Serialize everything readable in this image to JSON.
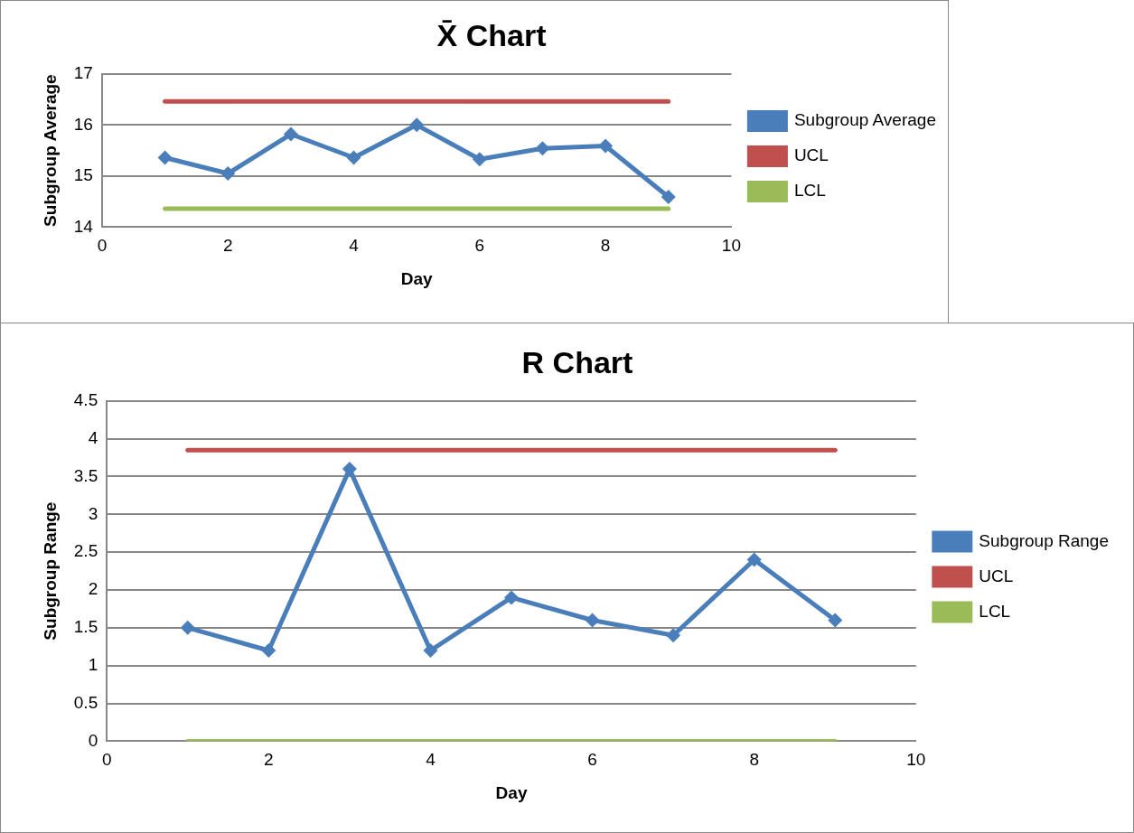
{
  "chart_data": [
    {
      "type": "line",
      "title": "X̄ Chart",
      "xlabel": "Day",
      "ylabel": "Subgroup Average",
      "xlim": [
        0,
        10
      ],
      "xticks": [
        0,
        2,
        4,
        6,
        8,
        10
      ],
      "ylim": [
        14,
        17
      ],
      "yticks": [
        14,
        15,
        16,
        17
      ],
      "grid": "y",
      "legend": "right",
      "line_style": "solid",
      "series": [
        {
          "name": "Subgroup Average",
          "color": "#4a7ebb",
          "marker": "diamond",
          "x": [
            1,
            2,
            3,
            4,
            5,
            6,
            7,
            8,
            9
          ],
          "values": [
            15.36,
            15.05,
            15.82,
            15.36,
            16.0,
            15.33,
            15.54,
            15.59,
            14.59
          ]
        },
        {
          "name": "UCL",
          "color": "#c0504d",
          "marker": "none",
          "x": [
            1,
            9
          ],
          "values": [
            16.46,
            16.46
          ]
        },
        {
          "name": "LCL",
          "color": "#9bbb59",
          "marker": "none",
          "x": [
            1,
            9
          ],
          "values": [
            14.36,
            14.36
          ]
        }
      ]
    },
    {
      "type": "line",
      "title": "R Chart",
      "xlabel": "Day",
      "ylabel": "Subgroup Range",
      "xlim": [
        0,
        10
      ],
      "xticks": [
        0,
        2,
        4,
        6,
        8,
        10
      ],
      "ylim": [
        0,
        4.5
      ],
      "yticks": [
        0,
        0.5,
        1,
        1.5,
        2,
        2.5,
        3,
        3.5,
        4,
        4.5
      ],
      "grid": "y",
      "legend": "right",
      "line_style": "solid",
      "series": [
        {
          "name": "Subgroup Range",
          "color": "#4a7ebb",
          "marker": "diamond",
          "x": [
            1,
            2,
            3,
            4,
            5,
            6,
            7,
            8,
            9
          ],
          "values": [
            1.5,
            1.2,
            3.6,
            1.2,
            1.9,
            1.6,
            1.4,
            2.4,
            1.6
          ]
        },
        {
          "name": "UCL",
          "color": "#c0504d",
          "marker": "none",
          "x": [
            1,
            9
          ],
          "values": [
            3.85,
            3.85
          ]
        },
        {
          "name": "LCL",
          "color": "#9bbb59",
          "marker": "none",
          "x": [
            1,
            9
          ],
          "values": [
            0,
            0
          ]
        }
      ]
    }
  ]
}
